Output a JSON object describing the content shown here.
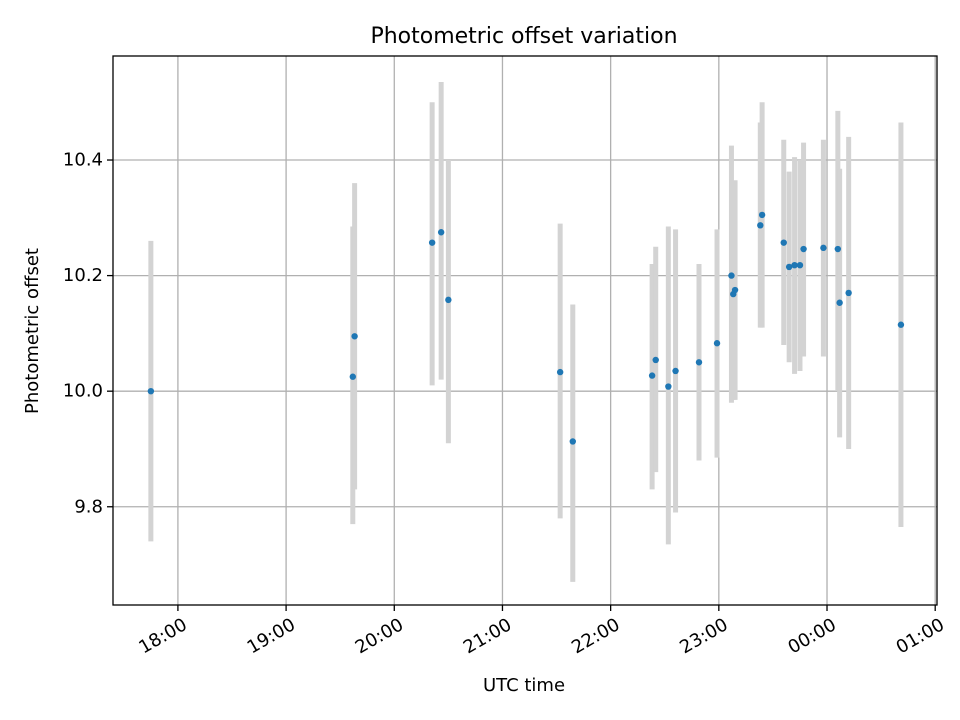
{
  "chart_data": {
    "type": "scatter",
    "title": "Photometric offset variation",
    "xlabel": "UTC time",
    "ylabel": "Photometric offset",
    "x_ticks": [
      "18:00",
      "19:00",
      "20:00",
      "21:00",
      "22:00",
      "23:00",
      "00:00",
      "01:00"
    ],
    "y_ticks": [
      "9.8",
      "10.0",
      "10.2",
      "10.4"
    ],
    "xlim": [
      "17:24",
      "01:01"
    ],
    "ylim": [
      9.63,
      10.58
    ],
    "grid": true,
    "error_bars": true,
    "colors": {
      "points": "#1f77b4",
      "error_bars": "#d3d3d3",
      "grid": "#b0b0b0"
    },
    "points": [
      {
        "x": "17:45",
        "y": 10.0,
        "ylo": 9.74,
        "yhi": 10.26
      },
      {
        "x": "19:37",
        "y": 10.025,
        "ylo": 9.77,
        "yhi": 10.285
      },
      {
        "x": "19:38",
        "y": 10.095,
        "ylo": 9.83,
        "yhi": 10.36
      },
      {
        "x": "20:21",
        "y": 10.257,
        "ylo": 10.01,
        "yhi": 10.5
      },
      {
        "x": "20:26",
        "y": 10.275,
        "ylo": 10.02,
        "yhi": 10.535
      },
      {
        "x": "20:30",
        "y": 10.158,
        "ylo": 9.91,
        "yhi": 10.4
      },
      {
        "x": "21:32",
        "y": 10.033,
        "ylo": 9.78,
        "yhi": 10.29
      },
      {
        "x": "21:39",
        "y": 9.913,
        "ylo": 9.67,
        "yhi": 10.15
      },
      {
        "x": "22:23",
        "y": 10.027,
        "ylo": 9.83,
        "yhi": 10.22
      },
      {
        "x": "22:25",
        "y": 10.054,
        "ylo": 9.86,
        "yhi": 10.25
      },
      {
        "x": "22:32",
        "y": 10.008,
        "ylo": 9.735,
        "yhi": 10.285
      },
      {
        "x": "22:36",
        "y": 10.035,
        "ylo": 9.79,
        "yhi": 10.28
      },
      {
        "x": "22:49",
        "y": 10.05,
        "ylo": 9.88,
        "yhi": 10.22
      },
      {
        "x": "22:59",
        "y": 10.083,
        "ylo": 9.885,
        "yhi": 10.28
      },
      {
        "x": "23:07",
        "y": 10.2,
        "ylo": 9.98,
        "yhi": 10.425
      },
      {
        "x": "23:08",
        "y": 10.168,
        "ylo": 9.985,
        "yhi": 10.36
      },
      {
        "x": "23:09",
        "y": 10.175,
        "ylo": 9.985,
        "yhi": 10.365
      },
      {
        "x": "23:23",
        "y": 10.287,
        "ylo": 10.11,
        "yhi": 10.465
      },
      {
        "x": "23:24",
        "y": 10.305,
        "ylo": 10.11,
        "yhi": 10.5
      },
      {
        "x": "23:36",
        "y": 10.257,
        "ylo": 10.08,
        "yhi": 10.435
      },
      {
        "x": "23:39",
        "y": 10.215,
        "ylo": 10.05,
        "yhi": 10.38
      },
      {
        "x": "23:42",
        "y": 10.218,
        "ylo": 10.03,
        "yhi": 10.405
      },
      {
        "x": "23:45",
        "y": 10.218,
        "ylo": 10.035,
        "yhi": 10.4
      },
      {
        "x": "23:47",
        "y": 10.246,
        "ylo": 10.06,
        "yhi": 10.43
      },
      {
        "x": "23:58",
        "y": 10.248,
        "ylo": 10.06,
        "yhi": 10.435
      },
      {
        "x": "00:06",
        "y": 10.246,
        "ylo": 10.0,
        "yhi": 10.485
      },
      {
        "x": "00:07",
        "y": 10.153,
        "ylo": 9.92,
        "yhi": 10.385
      },
      {
        "x": "00:12",
        "y": 10.17,
        "ylo": 9.9,
        "yhi": 10.44
      },
      {
        "x": "00:41",
        "y": 10.115,
        "ylo": 9.765,
        "yhi": 10.465
      }
    ]
  }
}
